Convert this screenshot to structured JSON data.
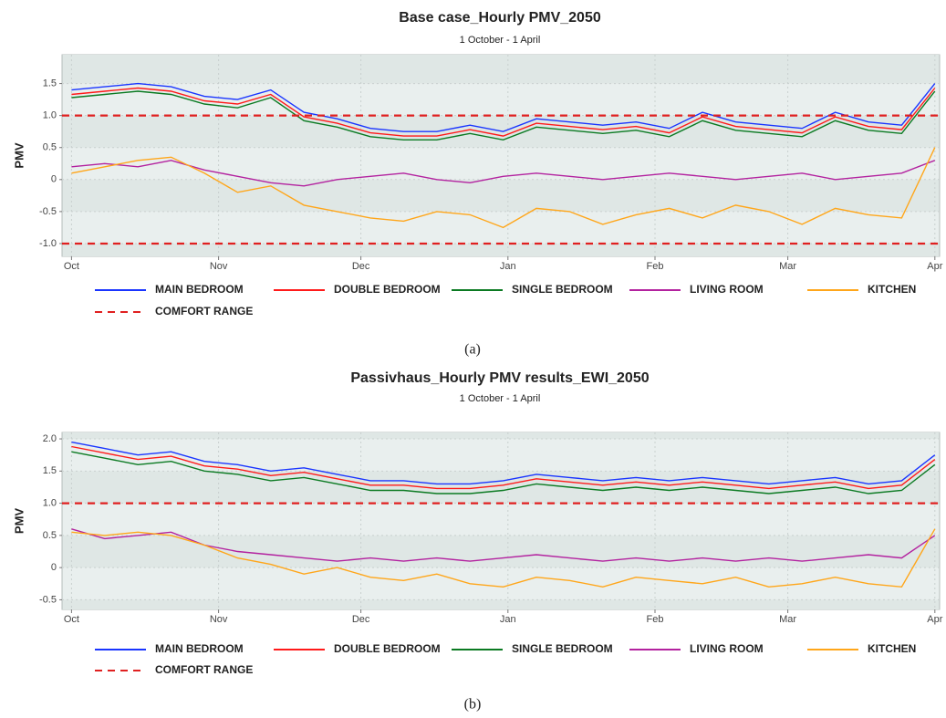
{
  "chart_data": [
    {
      "type": "line",
      "title": "Base case_Hourly PMV_2050",
      "subtitle": "1 October - 1 April",
      "y_label": "PMV",
      "caption": "(a)",
      "grid": true,
      "x": [
        0,
        7,
        14,
        21,
        28,
        35,
        42,
        49,
        56,
        63,
        70,
        77,
        84,
        91,
        98,
        105,
        112,
        119,
        126,
        133,
        140,
        147,
        154,
        161,
        168,
        175,
        182
      ],
      "xlim": [
        -2,
        183
      ],
      "xticks": [
        {
          "value": 0,
          "label": "Oct"
        },
        {
          "value": 31,
          "label": "Nov"
        },
        {
          "value": 61,
          "label": "Dec"
        },
        {
          "value": 92,
          "label": "Jan"
        },
        {
          "value": 123,
          "label": "Feb"
        },
        {
          "value": 151,
          "label": "Mar"
        },
        {
          "value": 182,
          "label": "Apr"
        }
      ],
      "ylim": [
        -1.2,
        1.95
      ],
      "yticks": [
        {
          "value": -1,
          "label": "-1.0"
        },
        -0.5,
        0,
        0.5,
        {
          "value": 1,
          "label": "1.0"
        },
        1.5
      ],
      "series": [
        {
          "name": "MAIN BEDROOM",
          "color": "#1a35ff",
          "values": [
            1.4,
            1.45,
            1.5,
            1.45,
            1.3,
            1.25,
            1.4,
            1.05,
            0.95,
            0.8,
            0.75,
            0.75,
            0.85,
            0.75,
            0.95,
            0.9,
            0.85,
            0.9,
            0.8,
            1.05,
            0.9,
            0.85,
            0.8,
            1.05,
            0.9,
            0.85,
            1.5
          ]
        },
        {
          "name": "DOUBLE BEDROOM",
          "color": "#ff1a1a",
          "values": [
            1.33,
            1.38,
            1.43,
            1.38,
            1.23,
            1.18,
            1.33,
            0.98,
            0.88,
            0.73,
            0.68,
            0.68,
            0.78,
            0.68,
            0.88,
            0.83,
            0.78,
            0.83,
            0.73,
            0.98,
            0.83,
            0.78,
            0.73,
            0.98,
            0.83,
            0.78,
            1.43
          ]
        },
        {
          "name": "SINGLE BEDROOM",
          "color": "#0b7a22",
          "values": [
            1.28,
            1.33,
            1.38,
            1.33,
            1.18,
            1.12,
            1.28,
            0.92,
            0.82,
            0.67,
            0.62,
            0.62,
            0.72,
            0.62,
            0.82,
            0.77,
            0.72,
            0.77,
            0.67,
            0.92,
            0.77,
            0.72,
            0.67,
            0.92,
            0.77,
            0.72,
            1.38
          ]
        },
        {
          "name": "LIVING ROOM",
          "color": "#b3229f",
          "values": [
            0.2,
            0.25,
            0.2,
            0.3,
            0.15,
            0.05,
            -0.05,
            -0.1,
            0,
            0.05,
            0.1,
            0,
            -0.05,
            0.05,
            0.1,
            0.05,
            0,
            0.05,
            0.1,
            0.05,
            0,
            0.05,
            0.1,
            0,
            0.05,
            0.1,
            0.3
          ]
        },
        {
          "name": "KITCHEN",
          "color": "#ffa61a",
          "values": [
            0.1,
            0.2,
            0.3,
            0.35,
            0.1,
            -0.2,
            -0.1,
            -0.4,
            -0.5,
            -0.6,
            -0.65,
            -0.5,
            -0.55,
            -0.75,
            -0.45,
            -0.5,
            -0.7,
            -0.55,
            -0.45,
            -0.6,
            -0.4,
            -0.5,
            -0.7,
            -0.45,
            -0.55,
            -0.6,
            0.5
          ]
        }
      ],
      "reference_lines": {
        "name": "COMFORT RANGE",
        "color": "#e02020",
        "values": [
          1,
          -1
        ]
      }
    },
    {
      "type": "line",
      "title": "Passivhaus_Hourly PMV results_EWI_2050",
      "subtitle": "1 October - 1 April",
      "y_label": "PMV",
      "caption": "(b)",
      "grid": true,
      "x": [
        0,
        7,
        14,
        21,
        28,
        35,
        42,
        49,
        56,
        63,
        70,
        77,
        84,
        91,
        98,
        105,
        112,
        119,
        126,
        133,
        140,
        147,
        154,
        161,
        168,
        175,
        182
      ],
      "xlim": [
        -2,
        183
      ],
      "xticks": [
        {
          "value": 0,
          "label": "Oct"
        },
        {
          "value": 31,
          "label": "Nov"
        },
        {
          "value": 61,
          "label": "Dec"
        },
        {
          "value": 92,
          "label": "Jan"
        },
        {
          "value": 123,
          "label": "Feb"
        },
        {
          "value": 151,
          "label": "Mar"
        },
        {
          "value": 182,
          "label": "Apr"
        }
      ],
      "ylim": [
        -0.65,
        2.1
      ],
      "yticks": [
        -0.5,
        0,
        0.5,
        {
          "value": 1,
          "label": "1.0"
        },
        1.5,
        {
          "value": 2,
          "label": "2.0"
        }
      ],
      "series": [
        {
          "name": "MAIN BEDROOM",
          "color": "#1a35ff",
          "values": [
            1.95,
            1.85,
            1.75,
            1.8,
            1.65,
            1.6,
            1.5,
            1.55,
            1.45,
            1.35,
            1.35,
            1.3,
            1.3,
            1.35,
            1.45,
            1.4,
            1.35,
            1.4,
            1.35,
            1.4,
            1.35,
            1.3,
            1.35,
            1.4,
            1.3,
            1.35,
            1.75
          ]
        },
        {
          "name": "DOUBLE BEDROOM",
          "color": "#ff1a1a",
          "values": [
            1.88,
            1.78,
            1.68,
            1.73,
            1.58,
            1.53,
            1.43,
            1.48,
            1.38,
            1.28,
            1.28,
            1.23,
            1.23,
            1.28,
            1.38,
            1.33,
            1.28,
            1.33,
            1.28,
            1.33,
            1.28,
            1.23,
            1.28,
            1.33,
            1.23,
            1.28,
            1.68
          ]
        },
        {
          "name": "SINGLE BEDROOM",
          "color": "#0b7a22",
          "values": [
            1.8,
            1.7,
            1.6,
            1.65,
            1.5,
            1.45,
            1.35,
            1.4,
            1.3,
            1.2,
            1.2,
            1.15,
            1.15,
            1.2,
            1.3,
            1.25,
            1.2,
            1.25,
            1.2,
            1.25,
            1.2,
            1.15,
            1.2,
            1.25,
            1.15,
            1.2,
            1.6
          ]
        },
        {
          "name": "LIVING ROOM",
          "color": "#b3229f",
          "values": [
            0.6,
            0.45,
            0.5,
            0.55,
            0.35,
            0.25,
            0.2,
            0.15,
            0.1,
            0.15,
            0.1,
            0.15,
            0.1,
            0.15,
            0.2,
            0.15,
            0.1,
            0.15,
            0.1,
            0.15,
            0.1,
            0.15,
            0.1,
            0.15,
            0.2,
            0.15,
            0.5
          ]
        },
        {
          "name": "KITCHEN",
          "color": "#ffa61a",
          "values": [
            0.55,
            0.5,
            0.55,
            0.5,
            0.35,
            0.15,
            0.05,
            -0.1,
            0,
            -0.15,
            -0.2,
            -0.1,
            -0.25,
            -0.3,
            -0.15,
            -0.2,
            -0.3,
            -0.15,
            -0.2,
            -0.25,
            -0.15,
            -0.3,
            -0.25,
            -0.15,
            -0.25,
            -0.3,
            0.6
          ]
        }
      ],
      "reference_lines": {
        "name": "COMFORT RANGE",
        "color": "#e02020",
        "values": [
          1
        ]
      }
    }
  ]
}
